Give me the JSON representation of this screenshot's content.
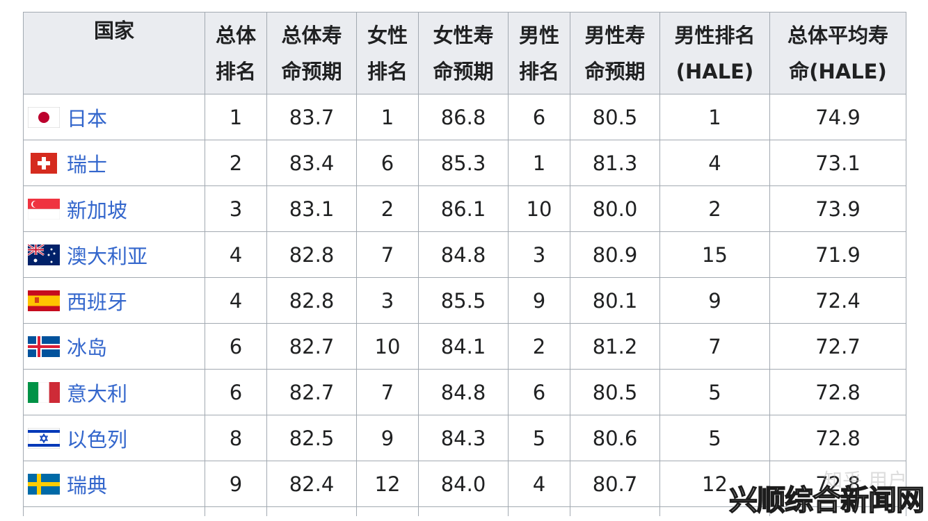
{
  "table": {
    "headers": [
      "国家",
      "总体\n排名",
      "总体寿\n命预期",
      "女性\n排名",
      "女性寿\n命预期",
      "男性\n排名",
      "男性寿\n命预期",
      "男性排名\n(HALE)",
      "总体平均寿\n命(HALE)"
    ],
    "header_lines": [
      [
        "国家"
      ],
      [
        "总体",
        "排名"
      ],
      [
        "总体寿",
        "命预期"
      ],
      [
        "女性",
        "排名"
      ],
      [
        "女性寿",
        "命预期"
      ],
      [
        "男性",
        "排名"
      ],
      [
        "男性寿",
        "命预期"
      ],
      [
        "男性排名",
        "(HALE)"
      ],
      [
        "总体平均寿",
        "命(HALE)"
      ]
    ],
    "rows": [
      {
        "flag": "japan-flag-icon",
        "country": "日本",
        "cells": [
          "1",
          "83.7",
          "1",
          "86.8",
          "6",
          "80.5",
          "1",
          "74.9"
        ]
      },
      {
        "flag": "switzerland-flag-icon",
        "country": "瑞士",
        "cells": [
          "2",
          "83.4",
          "6",
          "85.3",
          "1",
          "81.3",
          "4",
          "73.1"
        ]
      },
      {
        "flag": "singapore-flag-icon",
        "country": "新加坡",
        "cells": [
          "3",
          "83.1",
          "2",
          "86.1",
          "10",
          "80.0",
          "2",
          "73.9"
        ]
      },
      {
        "flag": "australia-flag-icon",
        "country": "澳大利亚",
        "cells": [
          "4",
          "82.8",
          "7",
          "84.8",
          "3",
          "80.9",
          "15",
          "71.9"
        ]
      },
      {
        "flag": "spain-flag-icon",
        "country": "西班牙",
        "cells": [
          "4",
          "82.8",
          "3",
          "85.5",
          "9",
          "80.1",
          "9",
          "72.4"
        ]
      },
      {
        "flag": "iceland-flag-icon",
        "country": "冰岛",
        "cells": [
          "6",
          "82.7",
          "10",
          "84.1",
          "2",
          "81.2",
          "7",
          "72.7"
        ]
      },
      {
        "flag": "italy-flag-icon",
        "country": "意大利",
        "cells": [
          "6",
          "82.7",
          "7",
          "84.8",
          "6",
          "80.5",
          "5",
          "72.8"
        ]
      },
      {
        "flag": "israel-flag-icon",
        "country": "以色列",
        "cells": [
          "8",
          "82.5",
          "9",
          "84.3",
          "5",
          "80.6",
          "5",
          "72.8"
        ]
      },
      {
        "flag": "sweden-flag-icon",
        "country": "瑞典",
        "cells": [
          "9",
          "82.4",
          "12",
          "84.0",
          "4",
          "80.7",
          "12",
          "72.8"
        ]
      }
    ]
  },
  "watermark": {
    "main": "兴顺综合新闻网",
    "faint": "知乎 用户"
  },
  "colors": {
    "link": "#3366cc",
    "header_bg": "#eaecf0",
    "border": "#a2a9b1"
  }
}
